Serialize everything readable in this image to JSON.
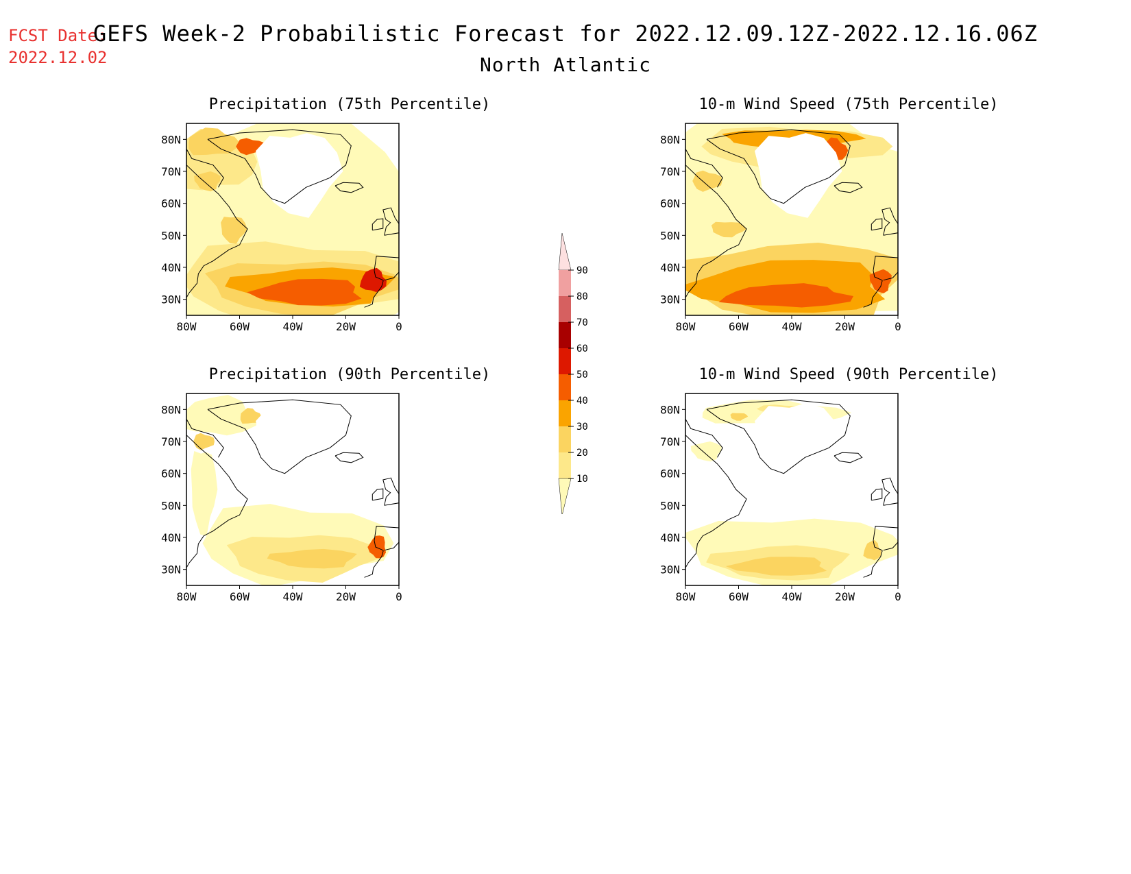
{
  "forecast_date": {
    "label": "FCST Date:",
    "value": "2022.12.02"
  },
  "title": "GEFS Week-2 Probabilistic Forecast for 2022.12.09.12Z-2022.12.16.06Z",
  "subtitle": "North Atlantic",
  "panels": [
    {
      "id": "precip75",
      "title": "Precipitation (75th Percentile)"
    },
    {
      "id": "wind75",
      "title": "10-m Wind Speed (75th Percentile)"
    },
    {
      "id": "precip90",
      "title": "Precipitation (90th Percentile)"
    },
    {
      "id": "wind90",
      "title": "10-m Wind Speed (90th Percentile)"
    }
  ],
  "axes": {
    "lat_labels": [
      "80N",
      "70N",
      "60N",
      "50N",
      "40N",
      "30N"
    ],
    "lon_labels": [
      "80W",
      "60W",
      "40W",
      "20W",
      "0"
    ],
    "lat_range": [
      25,
      85
    ],
    "lon_range": [
      -80,
      0
    ]
  },
  "legend": {
    "levels": [
      "10",
      "20",
      "30",
      "40",
      "50",
      "60",
      "70",
      "80",
      "90"
    ],
    "colors": [
      "#fffab8",
      "#fde88a",
      "#fbd460",
      "#faa400",
      "#f55d00",
      "#dd1800",
      "#a80000",
      "#d66060",
      "#f0a0a0",
      "#fde0e0"
    ]
  }
}
